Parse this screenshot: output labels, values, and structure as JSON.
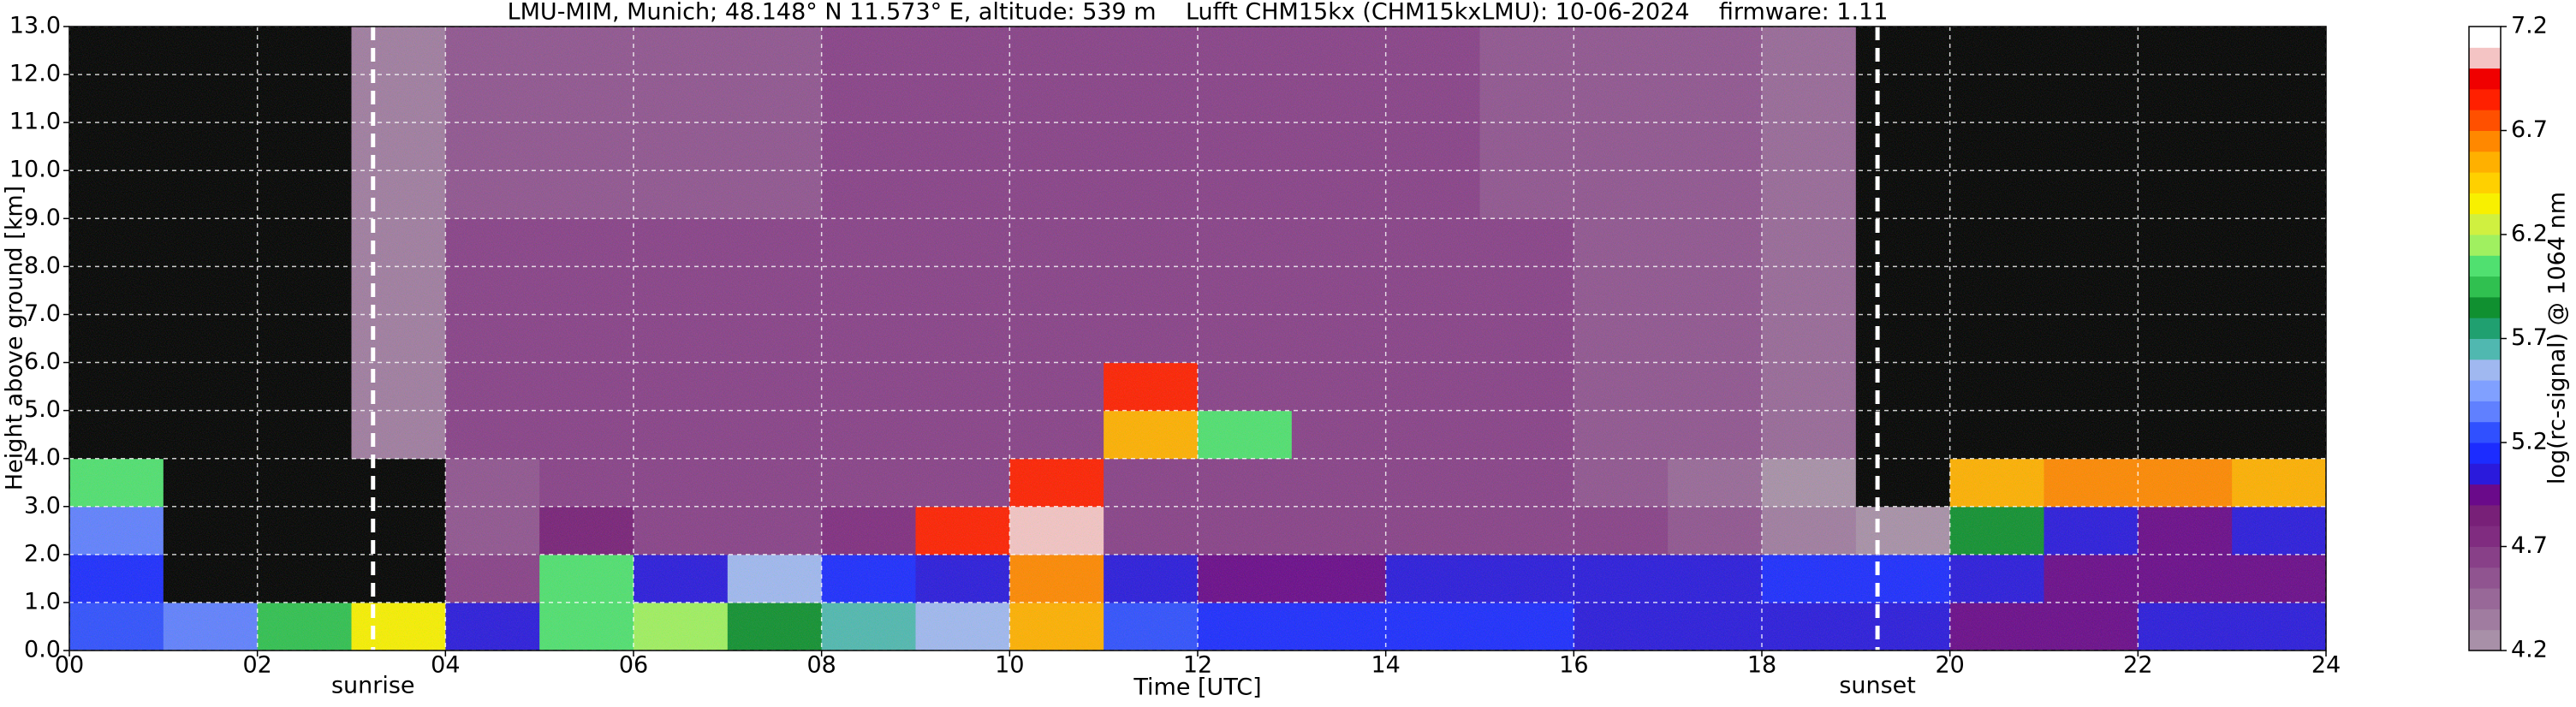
{
  "chart_data": {
    "type": "heatmap",
    "title": "LMU-MIM, Munich; 48.148° N 11.573° E, altitude: 539 m    Lufft CHM15kx (CHM15kxLMU): 10-06-2024    firmware: 1.11",
    "xlabel": "Time [UTC]",
    "ylabel": "Height above ground [km]",
    "colorbar_label": "log(rc-signal) @ 1064 nm",
    "xlim": [
      0,
      24
    ],
    "xticks": [
      {
        "value": 0,
        "label": "00"
      },
      {
        "value": 2,
        "label": "02"
      },
      {
        "value": 4,
        "label": "04"
      },
      {
        "value": 6,
        "label": "06"
      },
      {
        "value": 8,
        "label": "08"
      },
      {
        "value": 10,
        "label": "10"
      },
      {
        "value": 12,
        "label": "12"
      },
      {
        "value": 14,
        "label": "14"
      },
      {
        "value": 16,
        "label": "16"
      },
      {
        "value": 18,
        "label": "18"
      },
      {
        "value": 20,
        "label": "20"
      },
      {
        "value": 22,
        "label": "22"
      },
      {
        "value": 24,
        "label": "24"
      }
    ],
    "ylim": [
      0,
      13
    ],
    "yticks": [
      {
        "value": 0,
        "label": "0.0"
      },
      {
        "value": 1,
        "label": "1.0"
      },
      {
        "value": 2,
        "label": "2.0"
      },
      {
        "value": 3,
        "label": "3.0"
      },
      {
        "value": 4,
        "label": "4.0"
      },
      {
        "value": 5,
        "label": "5.0"
      },
      {
        "value": 6,
        "label": "6.0"
      },
      {
        "value": 7,
        "label": "7.0"
      },
      {
        "value": 8,
        "label": "8.0"
      },
      {
        "value": 9,
        "label": "9.0"
      },
      {
        "value": 10,
        "label": "10.0"
      },
      {
        "value": 11,
        "label": "11.0"
      },
      {
        "value": 12,
        "label": "12.0"
      },
      {
        "value": 13,
        "label": "13.0"
      }
    ],
    "grid": true,
    "x_edges": [
      0,
      1,
      2,
      3,
      4,
      5,
      6,
      7,
      8,
      9,
      10,
      11,
      12,
      13,
      14,
      15,
      16,
      17,
      18,
      19,
      20,
      21,
      22,
      23,
      24
    ],
    "y_edges": [
      0,
      1,
      2,
      3,
      4,
      5,
      6,
      7,
      8,
      9,
      10,
      11,
      12,
      13
    ],
    "z": [
      [
        5.2,
        5.3,
        5.9,
        6.3,
        5.0,
        6.0,
        6.1,
        5.8,
        5.6,
        5.5,
        6.5,
        5.2,
        5.1,
        5.1,
        5.1,
        5.1,
        5.0,
        5.0,
        5.0,
        5.0,
        4.9,
        4.9,
        5.0,
        5.0
      ],
      [
        5.1,
        4.1,
        4.0,
        4.1,
        4.6,
        6.0,
        5.0,
        5.5,
        5.1,
        5.0,
        6.6,
        5.0,
        4.9,
        4.9,
        5.0,
        5.0,
        5.0,
        5.0,
        5.1,
        5.1,
        5.0,
        4.9,
        4.9,
        4.9
      ],
      [
        5.3,
        4.0,
        4.0,
        4.0,
        4.5,
        4.8,
        4.6,
        4.6,
        4.7,
        6.8,
        7.0,
        4.6,
        4.6,
        4.6,
        4.6,
        4.6,
        4.6,
        4.5,
        4.3,
        4.2,
        5.8,
        5.0,
        4.9,
        5.0
      ],
      [
        6.0,
        4.0,
        4.0,
        4.0,
        4.5,
        4.6,
        4.6,
        4.6,
        4.6,
        4.6,
        6.8,
        4.6,
        4.6,
        4.6,
        4.6,
        4.6,
        4.5,
        4.4,
        4.2,
        4.1,
        6.5,
        6.6,
        6.6,
        6.5
      ],
      [
        4.0,
        4.0,
        4.0,
        4.3,
        4.6,
        4.6,
        4.6,
        4.6,
        4.6,
        4.6,
        4.6,
        6.5,
        6.0,
        4.6,
        4.6,
        4.6,
        4.5,
        4.5,
        4.4,
        4.1,
        4.0,
        4.0,
        4.0,
        4.0
      ],
      [
        4.0,
        4.0,
        4.0,
        4.3,
        4.6,
        4.6,
        4.6,
        4.6,
        4.6,
        4.6,
        4.6,
        6.8,
        4.6,
        4.6,
        4.6,
        4.6,
        4.5,
        4.5,
        4.4,
        4.1,
        4.0,
        4.0,
        4.0,
        4.0
      ],
      [
        4.0,
        4.0,
        4.0,
        4.3,
        4.6,
        4.6,
        4.6,
        4.6,
        4.6,
        4.6,
        4.6,
        4.6,
        4.6,
        4.6,
        4.6,
        4.6,
        4.5,
        4.5,
        4.4,
        4.1,
        4.0,
        4.0,
        4.0,
        4.0
      ],
      [
        4.0,
        4.0,
        4.0,
        4.3,
        4.6,
        4.6,
        4.6,
        4.6,
        4.6,
        4.6,
        4.6,
        4.6,
        4.6,
        4.6,
        4.6,
        4.6,
        4.5,
        4.5,
        4.4,
        4.1,
        4.0,
        4.0,
        4.0,
        4.0
      ],
      [
        4.0,
        4.0,
        4.0,
        4.3,
        4.6,
        4.6,
        4.6,
        4.6,
        4.6,
        4.6,
        4.6,
        4.6,
        4.6,
        4.6,
        4.6,
        4.6,
        4.5,
        4.5,
        4.4,
        4.1,
        4.0,
        4.0,
        4.0,
        4.0
      ],
      [
        4.0,
        4.0,
        4.0,
        4.3,
        4.5,
        4.5,
        4.5,
        4.5,
        4.6,
        4.6,
        4.6,
        4.6,
        4.6,
        4.6,
        4.6,
        4.5,
        4.5,
        4.5,
        4.4,
        4.1,
        4.0,
        4.0,
        4.0,
        4.0
      ],
      [
        4.0,
        4.0,
        4.0,
        4.3,
        4.5,
        4.5,
        4.5,
        4.5,
        4.6,
        4.6,
        4.6,
        4.6,
        4.6,
        4.6,
        4.6,
        4.5,
        4.5,
        4.5,
        4.4,
        4.1,
        4.0,
        4.0,
        4.0,
        4.0
      ],
      [
        4.0,
        4.0,
        4.0,
        4.3,
        4.5,
        4.5,
        4.5,
        4.5,
        4.6,
        4.6,
        4.6,
        4.6,
        4.6,
        4.6,
        4.6,
        4.5,
        4.5,
        4.5,
        4.4,
        4.1,
        4.0,
        4.0,
        4.0,
        4.0
      ],
      [
        4.0,
        4.0,
        4.0,
        4.3,
        4.5,
        4.5,
        4.5,
        4.5,
        4.6,
        4.6,
        4.6,
        4.6,
        4.6,
        4.6,
        4.6,
        4.5,
        4.5,
        4.5,
        4.4,
        4.1,
        4.0,
        4.0,
        4.0,
        4.0
      ]
    ],
    "below_color": "#000000",
    "clim": [
      4.2,
      7.2
    ],
    "colorbar_ticks": [
      4.2,
      4.7,
      5.2,
      5.7,
      6.2,
      6.7,
      7.2
    ],
    "colors": [
      "#a890a8",
      "#a07ca0",
      "#986898",
      "#905490",
      "#884088",
      "#802c80",
      "#782078",
      "#6a0a8a",
      "#2a1adc",
      "#1c2cff",
      "#3050ff",
      "#6080ff",
      "#80a0ff",
      "#a0b8f0",
      "#50b8b0",
      "#20a070",
      "#109030",
      "#30c050",
      "#50e070",
      "#a0f060",
      "#d0f040",
      "#f8f000",
      "#ffd000",
      "#ffb000",
      "#ff8800",
      "#ff5000",
      "#ff2000",
      "#f00000",
      "#f4c4c4",
      "#ffffff"
    ],
    "annotations": [
      {
        "text": "sunrise",
        "x": 3.23
      },
      {
        "text": "sunset",
        "x": 19.23
      }
    ]
  }
}
